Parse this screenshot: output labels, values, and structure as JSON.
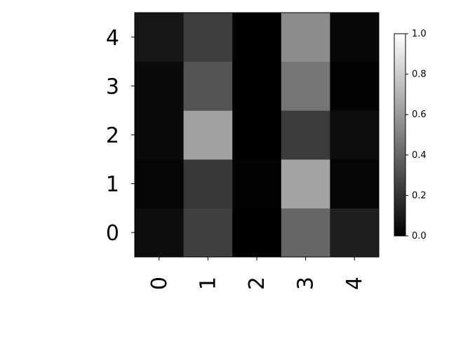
{
  "chart_data": {
    "type": "heatmap",
    "title": "",
    "xlabel": "",
    "ylabel": "",
    "x_categories": [
      "0",
      "1",
      "2",
      "3",
      "4"
    ],
    "y_categories": [
      "0",
      "1",
      "2",
      "3",
      "4"
    ],
    "values": [
      [
        0.05,
        0.25,
        0.0,
        0.4,
        0.12
      ],
      [
        0.02,
        0.22,
        0.01,
        0.64,
        0.02
      ],
      [
        0.04,
        0.63,
        0.0,
        0.23,
        0.05
      ],
      [
        0.04,
        0.33,
        0.0,
        0.46,
        0.01
      ],
      [
        0.09,
        0.24,
        0.0,
        0.55,
        0.03
      ]
    ],
    "colormap": "gray",
    "vmin": 0.0,
    "vmax": 1.0,
    "colorbar": {
      "ticks": [
        "0.0",
        "0.2",
        "0.4",
        "0.6",
        "0.8",
        "1.0"
      ],
      "tick_values": [
        0.0,
        0.2,
        0.4,
        0.6,
        0.8,
        1.0
      ]
    },
    "grid": false,
    "x_tick_rotation": "vertical"
  }
}
